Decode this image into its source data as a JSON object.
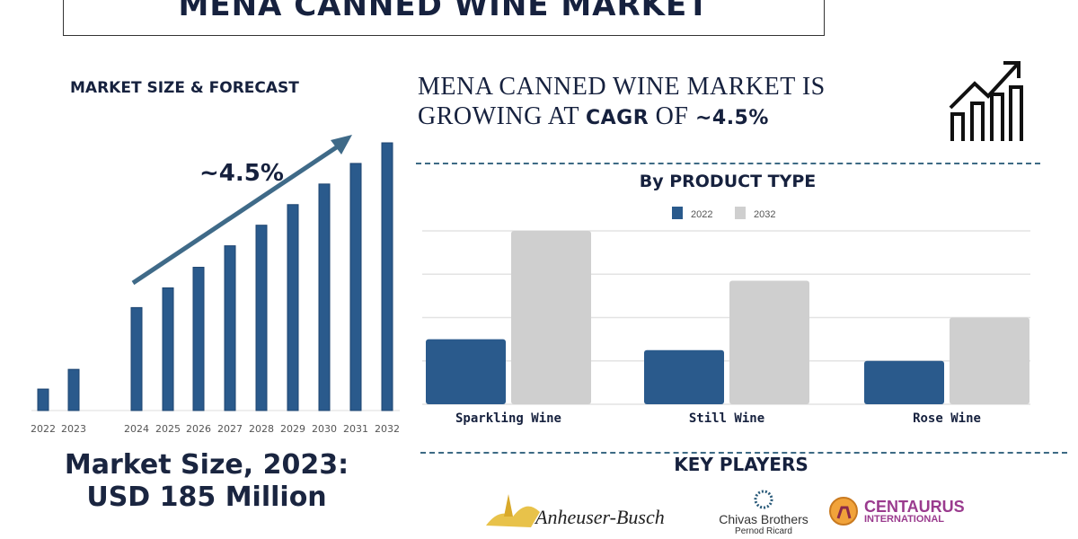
{
  "title": "MENA CANNED WINE MARKET",
  "left": {
    "subtitle": "MARKET SIZE & FORECAST",
    "cagr_label": "~4.5%",
    "market_size_line1": "Market Size, 2023:",
    "market_size_line2": "USD 185 Million"
  },
  "headline": {
    "part1": "MENA CANNED WINE MARKET IS",
    "part2": "GROWING AT ",
    "cagr": "CAGR",
    "part3": " OF ",
    "value": "~4.5%"
  },
  "key_players": {
    "title": "KEY PLAYERS",
    "logos": [
      "Anheuser-Busch",
      "Chivas Brothers",
      "Pernod Ricard",
      "CENTAURUS",
      "INTERNATIONAL"
    ]
  },
  "colors": {
    "bar_blue": "#2a5a8c",
    "bar_gray": "#cfcfcf",
    "navy": "#16213e"
  },
  "icons": [
    "growth-chart-icon",
    "trend-arrow-icon"
  ],
  "chart_data": [
    {
      "type": "bar",
      "title": "MARKET SIZE & FORECAST",
      "categories": [
        "2022",
        "2023",
        "2024",
        "2025",
        "2026",
        "2027",
        "2028",
        "2029",
        "2030",
        "2031",
        "2032"
      ],
      "values": [
        24,
        46,
        115,
        137,
        160,
        184,
        207,
        230,
        253,
        276,
        299
      ],
      "annotation": "~4.5%",
      "grid": false,
      "ylim": [
        0,
        300
      ]
    },
    {
      "type": "bar",
      "title": "By PRODUCT TYPE",
      "categories": [
        "Sparkling Wine",
        "Still Wine",
        "Rose Wine"
      ],
      "series": [
        {
          "name": "2022",
          "values": [
            1.5,
            1.25,
            1.0
          ]
        },
        {
          "name": "2032",
          "values": [
            4.0,
            2.85,
            2.0
          ]
        }
      ],
      "ylim": [
        0,
        4
      ],
      "grid": true,
      "legend": "top-center"
    }
  ]
}
